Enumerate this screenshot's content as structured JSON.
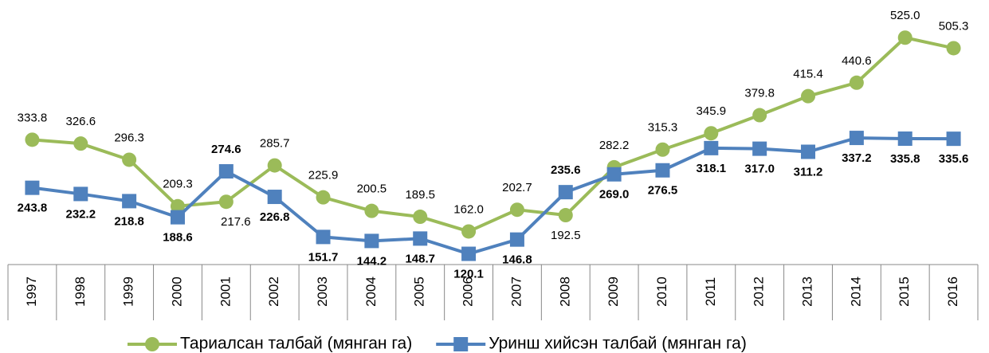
{
  "chart_data": {
    "type": "line",
    "categories": [
      "1997",
      "1998",
      "1999",
      "2000",
      "2001",
      "2002",
      "2003",
      "2004",
      "2005",
      "2006",
      "2007",
      "2008",
      "2009",
      "2010",
      "2011",
      "2012",
      "2013",
      "2014",
      "2015",
      "2016"
    ],
    "series": [
      {
        "name": "Тариалсан талбай (мянган га)",
        "color": "#9bbb59",
        "marker": "circle",
        "values": [
          333.8,
          326.6,
          296.3,
          209.3,
          217.6,
          285.7,
          225.9,
          200.5,
          189.5,
          162.0,
          202.7,
          192.5,
          282.2,
          315.3,
          345.9,
          379.8,
          415.4,
          440.6,
          525.0,
          505.3
        ],
        "value_labels": [
          "333.8",
          "326.6",
          "296.3",
          "209.3",
          "217.6",
          "285.7",
          "225.9",
          "200.5",
          "189.5",
          "162.0",
          "202.7",
          "192.5",
          "282.2",
          "315.3",
          "345.9",
          "379.8",
          "415.4",
          "440.6",
          "525.0",
          "505.3"
        ]
      },
      {
        "name": "Уринш хийсэн талбай (мянган га)",
        "color": "#4f81bd",
        "marker": "square",
        "values": [
          243.8,
          232.2,
          218.8,
          188.6,
          274.6,
          226.8,
          151.7,
          144.2,
          148.7,
          120.1,
          146.8,
          235.6,
          269.0,
          276.5,
          318.1,
          317.0,
          311.2,
          337.2,
          335.8,
          335.6
        ],
        "value_labels": [
          "243.8",
          "232.2",
          "218.8",
          "188.6",
          "274.6",
          "226.8",
          "151.7",
          "144.2",
          "148.7",
          "120.1",
          "146.8",
          "235.6",
          "269.0",
          "276.5",
          "318.1",
          "317.0",
          "311.2",
          "337.2",
          "335.8",
          "335.6"
        ]
      }
    ],
    "ylim": [
      100,
      600
    ],
    "legend": "bottom"
  }
}
